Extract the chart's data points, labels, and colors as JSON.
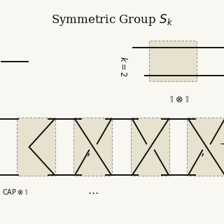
{
  "title": "Symmetric Group $\\mathcal{S}_k$",
  "bg_color": "#f8f7f2",
  "strand_color": "#111111",
  "fill_color": "#e6e2ce",
  "dotted_color": "#999999",
  "lw": 1.4,
  "k2_label": "$k=2$",
  "identity_label": "$\\mathbb{1}\\otimes\\mathbb{1}$",
  "cap_label": "$\\mathrm{CAP}\\otimes\\mathbb{1}$",
  "dots_label": "$\\cdots$",
  "fig_w": 3.2,
  "fig_h": 3.2,
  "dpi": 100
}
